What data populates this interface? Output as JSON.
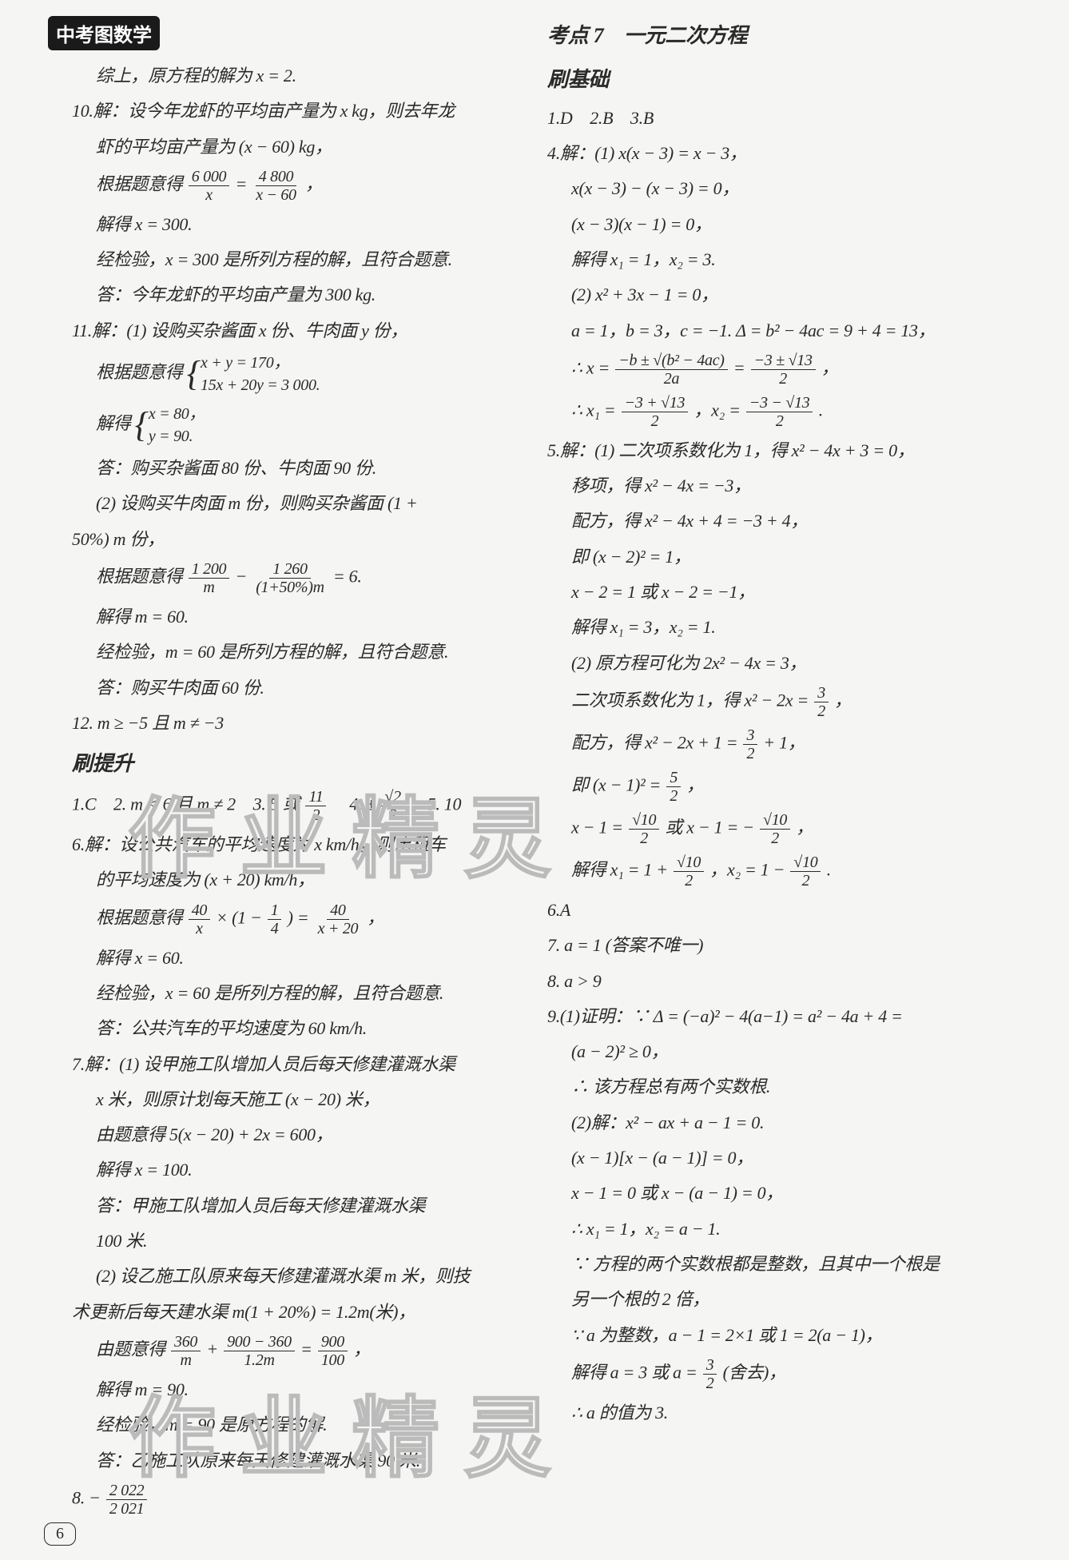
{
  "header": {
    "badge": "中考图数学"
  },
  "page_number": "6",
  "watermark": "作业精灵",
  "left": {
    "l1": "综上，原方程的解为 x = 2.",
    "l2": "10.解：设今年龙虾的平均亩产量为 x kg，则去年龙",
    "l3": "虾的平均亩产量为 (x − 60) kg，",
    "l4_pre": "根据题意得",
    "l4_f1n": "6 000",
    "l4_f1d": "x",
    "l4_mid": " = ",
    "l4_f2n": "4 800",
    "l4_f2d": "x − 60",
    "l4_post": "，",
    "l5": "解得 x = 300.",
    "l6": "经检验，x = 300 是所列方程的解，且符合题意.",
    "l7": "答：今年龙虾的平均亩产量为 300 kg.",
    "l8": "11.解：(1) 设购买杂酱面 x 份、牛肉面 y 份，",
    "l9_pre": "根据题意得",
    "l9_s1": "x + y = 170，",
    "l9_s2": "15x + 20y = 3 000.",
    "l10_pre": "解得",
    "l10_s1": "x = 80，",
    "l10_s2": "y = 90.",
    "l11": "答：购买杂酱面 80 份、牛肉面 90 份.",
    "l12": "(2) 设购买牛肉面 m 份，则购买杂酱面 (1 +",
    "l13": "50%) m 份，",
    "l14_pre": "根据题意得",
    "l14_f1n": "1 200",
    "l14_f1d": "m",
    "l14_mid": " − ",
    "l14_f2n": "1 260",
    "l14_f2d": "(1+50%)m",
    "l14_post": " = 6.",
    "l15": "解得 m = 60.",
    "l16": "经检验，m = 60 是所列方程的解，且符合题意.",
    "l17": "答：购买牛肉面 60 份.",
    "l18": "12. m ≥ −5 且 m ≠ −3",
    "l19": "刷提升",
    "l20_a": "1.C　2. m < 6 且 m ≠ 2　3. 5 或 ",
    "l20_f1n": "11",
    "l20_f1d": "2",
    "l20_b": "　4. ± ",
    "l20_f2n": "√2",
    "l20_f2d": "2",
    "l20_c": "　5. 10",
    "l21": "6.解：设公共汽车的平均速度为 x km/h，则出租车",
    "l22": "的平均速度为 (x + 20) km/h，",
    "l23_pre": "根据题意得",
    "l23_f1n": "40",
    "l23_f1d": "x",
    "l23_mid": " × (1 − ",
    "l23_f2n": "1",
    "l23_f2d": "4",
    "l23_mid2": ") = ",
    "l23_f3n": "40",
    "l23_f3d": "x + 20",
    "l23_post": "，",
    "l24": "解得 x = 60.",
    "l25": "经检验，x = 60 是所列方程的解，且符合题意.",
    "l26": "答：公共汽车的平均速度为 60 km/h.",
    "l27": "7.解：(1) 设甲施工队增加人员后每天修建灌溉水渠",
    "l28": "x 米，则原计划每天施工 (x − 20) 米，",
    "l29": "由题意得 5(x − 20) + 2x = 600，",
    "l30": "解得 x = 100.",
    "l31": "答：甲施工队增加人员后每天修建灌溉水渠",
    "l32": "100 米.",
    "l33": "(2) 设乙施工队原来每天修建灌溉水渠 m 米，则技",
    "l34": "术更新后每天建水渠 m(1 + 20%) = 1.2m(米)，",
    "l35_pre": "由题意得",
    "l35_f1n": "360",
    "l35_f1d": "m",
    "l35_mid": " + ",
    "l35_f2n": "900 − 360",
    "l35_f2d": "1.2m",
    "l35_mid2": " = ",
    "l35_f3n": "900",
    "l35_f3d": "100",
    "l35_post": "，",
    "l36": "解得 m = 90.",
    "l37": "经检验，m = 90 是原方程的解.",
    "l38": "答：乙施工队原来每天修建灌溉水渠 90 米.",
    "l39_pre": "8. − ",
    "l39_fn": "2 022",
    "l39_fd": "2 021"
  },
  "right": {
    "r1": "考点 7　一元二次方程",
    "r2": "刷基础",
    "r3": "1.D　2.B　3.B",
    "r4": "4.解：(1) x(x − 3) = x − 3，",
    "r5": "x(x − 3) − (x − 3) = 0，",
    "r6": "(x − 3)(x − 1) = 0，",
    "r7": "解得 x₁ = 1，x₂ = 3.",
    "r8": "(2) x² + 3x − 1 = 0，",
    "r9": "a = 1，b = 3，c = −1. Δ = b² − 4ac = 9 + 4 = 13，",
    "r10_pre": "∴ x = ",
    "r10_f1n": "−b ± √(b² − 4ac)",
    "r10_f1d": "2a",
    "r10_mid": " = ",
    "r10_f2n": "−3 ± √13",
    "r10_f2d": "2",
    "r10_post": "，",
    "r11_pre": "∴ x₁ = ",
    "r11_f1n": "−3 + √13",
    "r11_f1d": "2",
    "r11_mid": "，x₂ = ",
    "r11_f2n": "−3 − √13",
    "r11_f2d": "2",
    "r11_post": ".",
    "r12": "5.解：(1) 二次项系数化为 1，得 x² − 4x + 3 = 0，",
    "r13": "移项，得 x² − 4x = −3，",
    "r14": "配方，得 x² − 4x + 4 = −3 + 4，",
    "r15": "即 (x − 2)² = 1，",
    "r16": "x − 2 = 1 或 x − 2 = −1，",
    "r17": "解得 x₁ = 3，x₂ = 1.",
    "r18": "(2) 原方程可化为 2x² − 4x = 3，",
    "r19_pre": "二次项系数化为 1，得 x² − 2x = ",
    "r19_fn": "3",
    "r19_fd": "2",
    "r19_post": "，",
    "r20_pre": "配方，得 x² − 2x + 1 = ",
    "r20_fn": "3",
    "r20_fd": "2",
    "r20_post": " + 1，",
    "r21_pre": "即 (x − 1)² = ",
    "r21_fn": "5",
    "r21_fd": "2",
    "r21_post": "，",
    "r22_pre": "x − 1 = ",
    "r22_f1n": "√10",
    "r22_f1d": "2",
    "r22_mid": " 或 x − 1 = − ",
    "r22_f2n": "√10",
    "r22_f2d": "2",
    "r22_post": "，",
    "r23_pre": "解得 x₁ = 1 + ",
    "r23_f1n": "√10",
    "r23_f1d": "2",
    "r23_mid": "，x₂ = 1 − ",
    "r23_f2n": "√10",
    "r23_f2d": "2",
    "r23_post": ".",
    "r24": "6.A",
    "r25": "7. a = 1 (答案不唯一)",
    "r26": "8. a > 9",
    "r27": "9.(1)证明：∵ Δ = (−a)² − 4(a−1) = a² − 4a + 4 =",
    "r28": "(a − 2)² ≥ 0，",
    "r29": "∴ 该方程总有两个实数根.",
    "r30": "(2)解：x² − ax + a − 1 = 0.",
    "r31": "(x − 1)[x − (a − 1)] = 0，",
    "r32": "x − 1 = 0 或 x − (a − 1) = 0，",
    "r33": "∴ x₁ = 1，x₂ = a − 1.",
    "r34": "∵ 方程的两个实数根都是整数，且其中一个根是",
    "r35": "另一个根的 2 倍，",
    "r36": "∵ a 为整数，a − 1 = 2×1 或 1 = 2(a − 1)，",
    "r37_pre": "解得 a = 3 或 a = ",
    "r37_fn": "3",
    "r37_fd": "2",
    "r37_post": " (舍去)，",
    "r38": "∴ a 的值为 3."
  }
}
